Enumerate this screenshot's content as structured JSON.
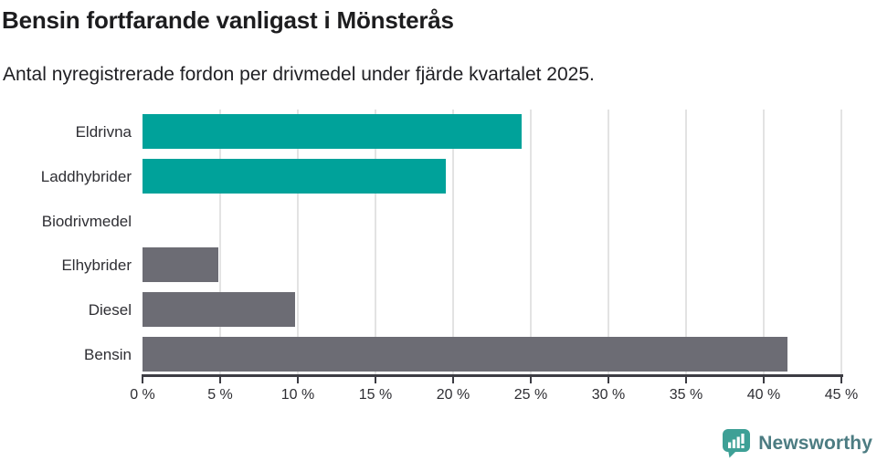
{
  "title": "Bensin fortfarande vanligast i Mönsterås",
  "subtitle": "Antal nyregistrerade fordon per drivmedel under fjärde kvartalet 2025.",
  "chart_data": {
    "type": "bar",
    "orientation": "horizontal",
    "title": "Bensin fortfarande vanligast i Mönsterås",
    "subtitle": "Antal nyregistrerade fordon per drivmedel under fjärde kvartalet 2025.",
    "categories": [
      "Eldrivna",
      "Laddhybrider",
      "Biodrivmedel",
      "Elhybrider",
      "Diesel",
      "Bensin"
    ],
    "values": [
      24.4,
      19.5,
      0,
      4.9,
      9.8,
      41.5
    ],
    "unit": "%",
    "xlim": [
      0,
      45
    ],
    "x_tick_step": 5,
    "x_tick_labels": [
      "0 %",
      "5 %",
      "10 %",
      "15 %",
      "20 %",
      "25 %",
      "30 %",
      "35 %",
      "40 %",
      "45 %"
    ],
    "grid": true,
    "legend": "none",
    "bar_colors": [
      "#00a29a",
      "#00a29a",
      "#6c6c74",
      "#6c6c74",
      "#6c6c74",
      "#6c6c74"
    ],
    "highlight_color": "#00a29a",
    "default_color": "#6c6c74",
    "gridline_color": "#e3e3e3",
    "axis_color": "#3c3c43"
  },
  "branding": {
    "logo_text": "Newsworthy",
    "logo_text_color": "#4c7c82",
    "logo_icon_color": "#3ea096",
    "logo_icon": "bar-chart-speech-bubble"
  }
}
